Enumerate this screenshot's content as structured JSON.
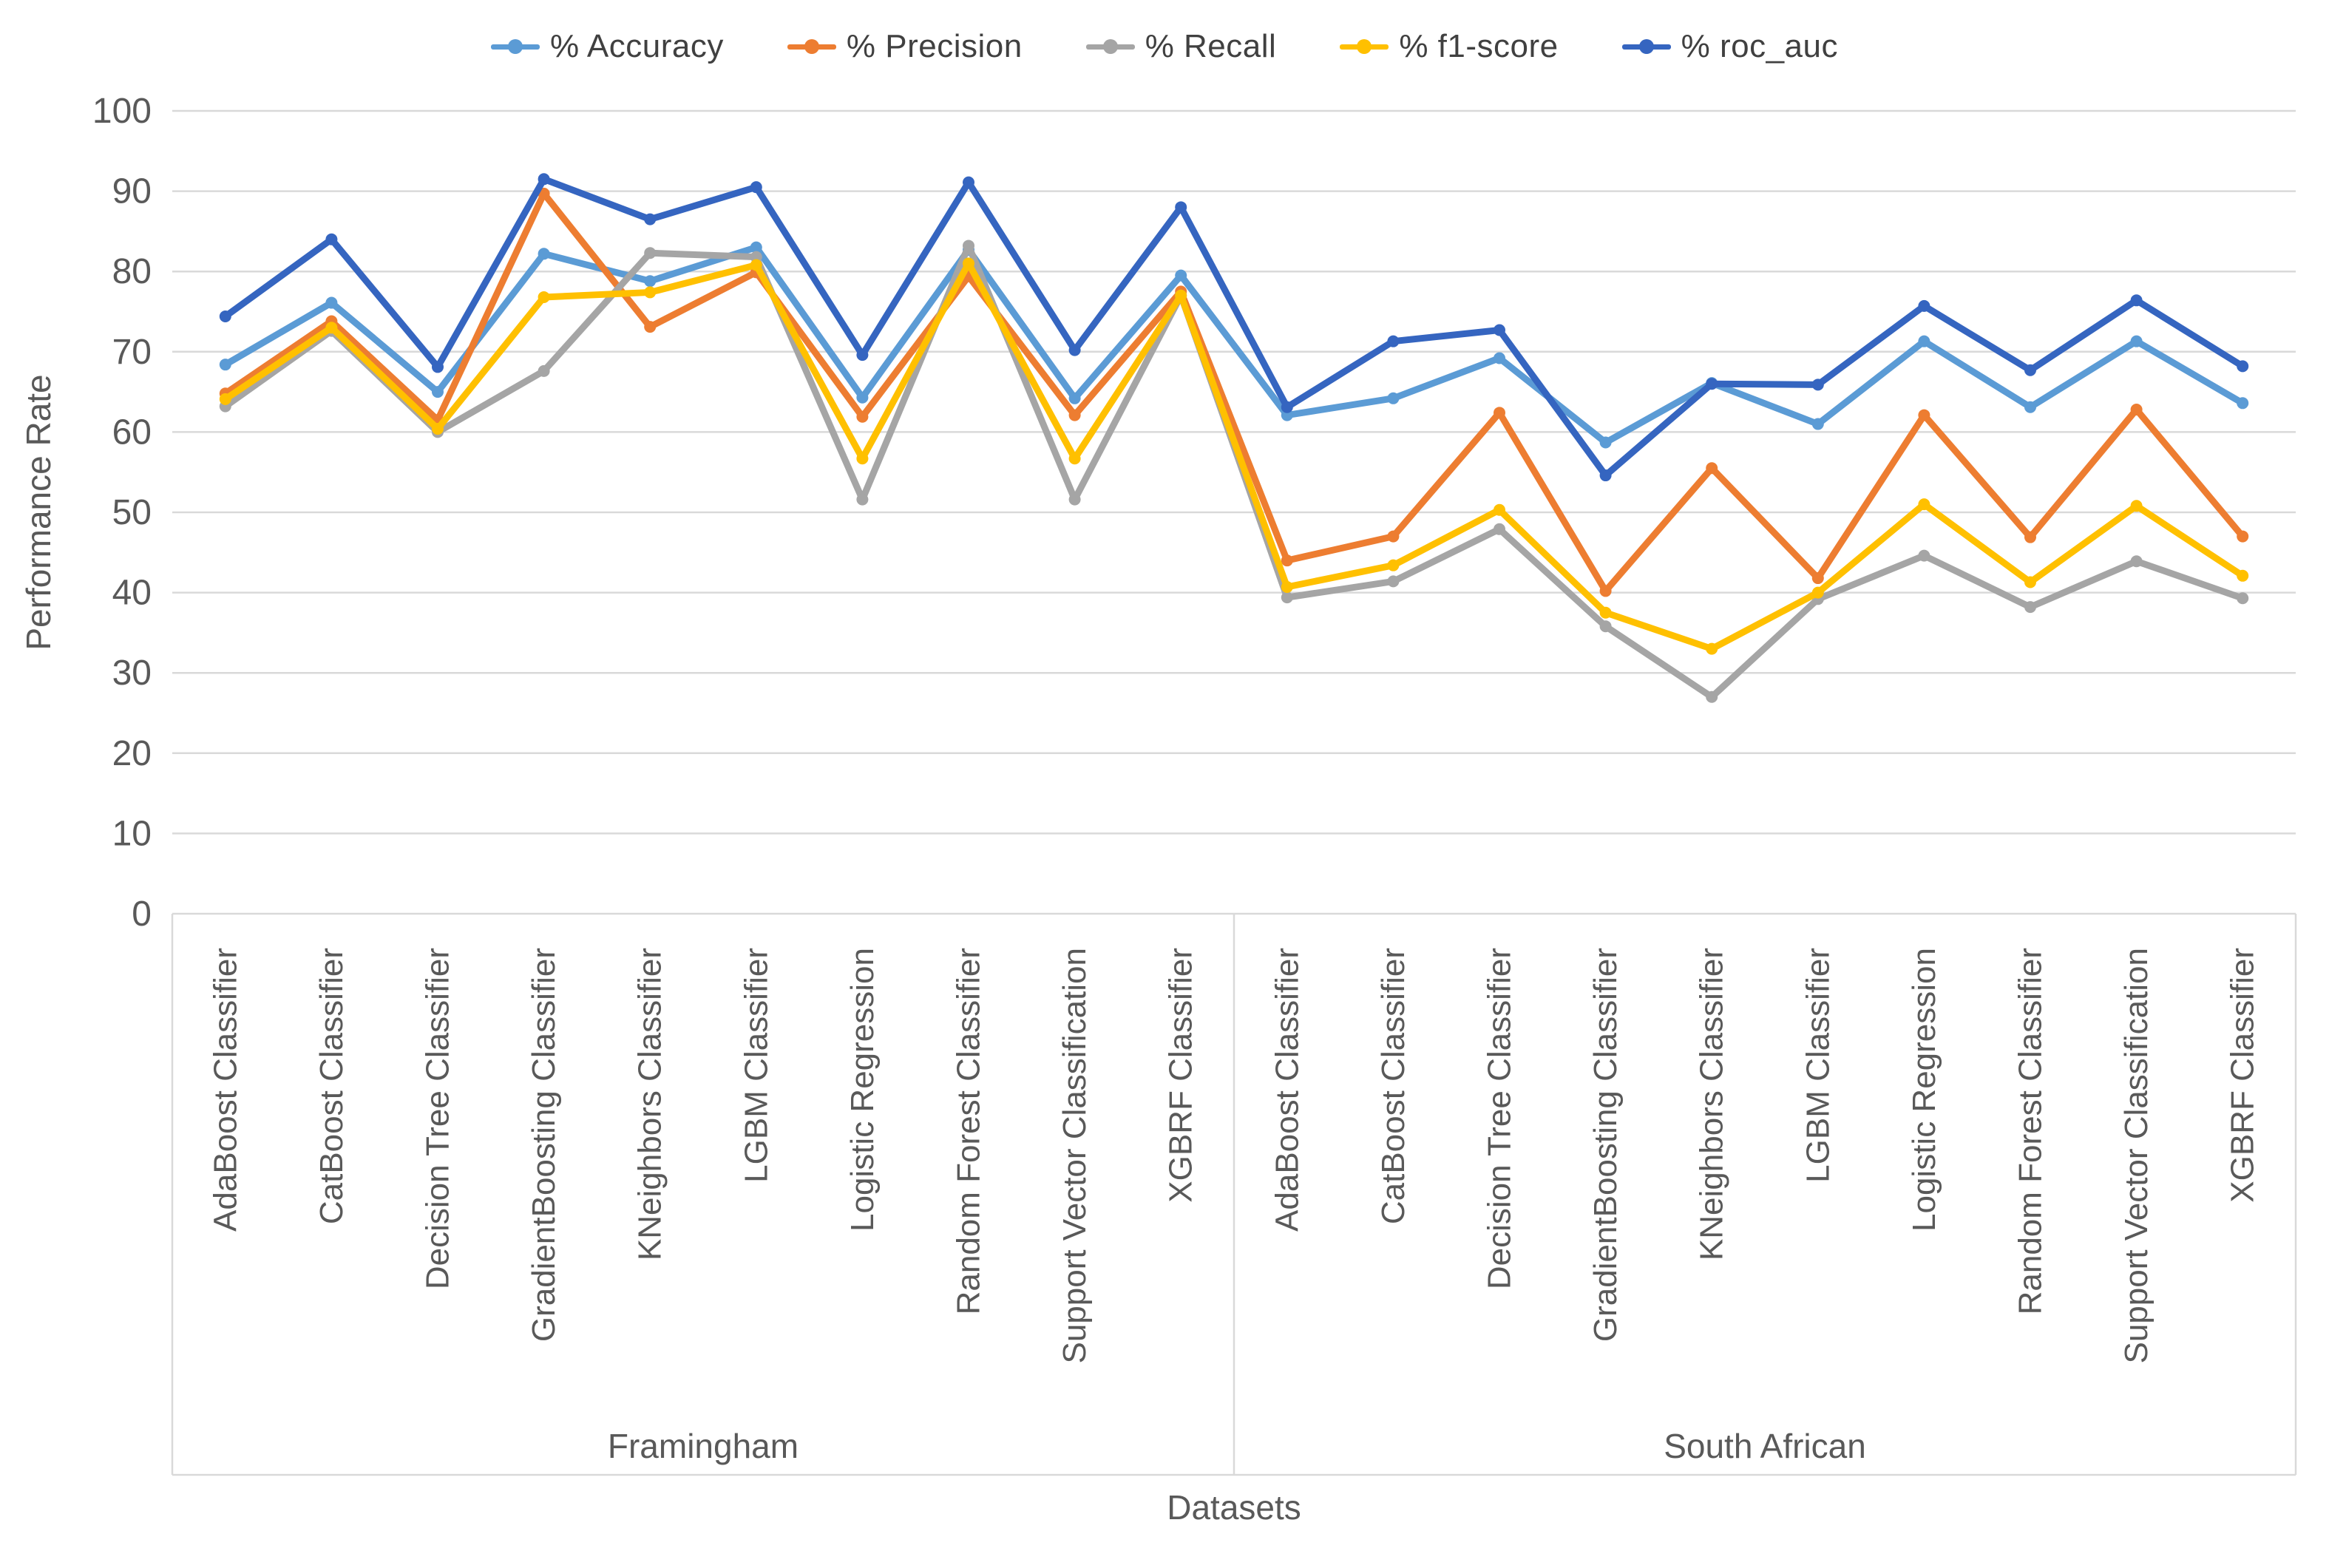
{
  "chart_data": {
    "type": "line",
    "title": "",
    "xlabel": "Datasets",
    "ylabel": "Performance Rate",
    "ylim": [
      0,
      100
    ],
    "y_ticks": [
      0,
      10,
      20,
      30,
      40,
      50,
      60,
      70,
      80,
      90,
      100
    ],
    "grid": true,
    "legend_position": "top",
    "groups": [
      {
        "label": "Framingham",
        "categories": [
          "AdaBoost Classifier",
          "CatBoost Classifier",
          "Decision Tree Classifier",
          "GradientBoosting Classifier",
          "KNeighbors Classifier",
          "LGBM Classifier",
          "Logistic Regression",
          "Random Forest Classifier",
          "Support Vector Classification",
          "XGBRF Classifier"
        ]
      },
      {
        "label": "South African",
        "categories": [
          "AdaBoost Classifier",
          "CatBoost Classifier",
          "Decision Tree Classifier",
          "GradientBoosting Classifier",
          "KNeighbors Classifier",
          "LGBM Classifier",
          "Logistic Regression",
          "Random Forest Classifier",
          "Support Vector Classification",
          "XGBRF Classifier"
        ]
      }
    ],
    "series": [
      {
        "name": "% Accuracy",
        "color": "#5B9BD5",
        "values": [
          68.4,
          76.1,
          65.0,
          82.2,
          78.8,
          83.0,
          64.3,
          82.7,
          64.2,
          79.5,
          62.1,
          64.2,
          69.2,
          58.7,
          66.1,
          61.0,
          71.3,
          63.1,
          71.3,
          63.6
        ]
      },
      {
        "name": "% Precision",
        "color": "#ED7D31",
        "values": [
          64.8,
          73.8,
          61.5,
          89.7,
          73.1,
          79.9,
          61.9,
          79.4,
          62.1,
          77.5,
          44.0,
          47.0,
          62.4,
          40.2,
          55.5,
          41.8,
          62.1,
          46.9,
          62.8,
          47.0
        ]
      },
      {
        "name": "% Recall",
        "color": "#A5A5A5",
        "values": [
          63.2,
          72.6,
          60.0,
          67.6,
          82.3,
          81.8,
          51.6,
          83.2,
          51.6,
          77.0,
          39.4,
          41.4,
          47.9,
          35.8,
          27.0,
          39.2,
          44.6,
          38.2,
          43.9,
          39.3
        ]
      },
      {
        "name": "% f1-score",
        "color": "#FFC000",
        "values": [
          64.1,
          73.0,
          60.4,
          76.8,
          77.4,
          80.8,
          56.7,
          81.0,
          56.7,
          77.0,
          40.7,
          43.4,
          50.3,
          37.5,
          33.0,
          40.0,
          51.0,
          41.3,
          50.8,
          42.1
        ]
      },
      {
        "name": "% roc_auc",
        "color": "#3565C0",
        "values": [
          74.4,
          84.0,
          68.1,
          91.5,
          86.5,
          90.5,
          69.6,
          91.1,
          70.2,
          88.0,
          63.1,
          71.3,
          72.7,
          54.6,
          66.0,
          65.9,
          75.7,
          67.7,
          76.4,
          68.2
        ]
      }
    ],
    "axis_color": "#D9D9D9",
    "tick_label_color": "#595959"
  }
}
